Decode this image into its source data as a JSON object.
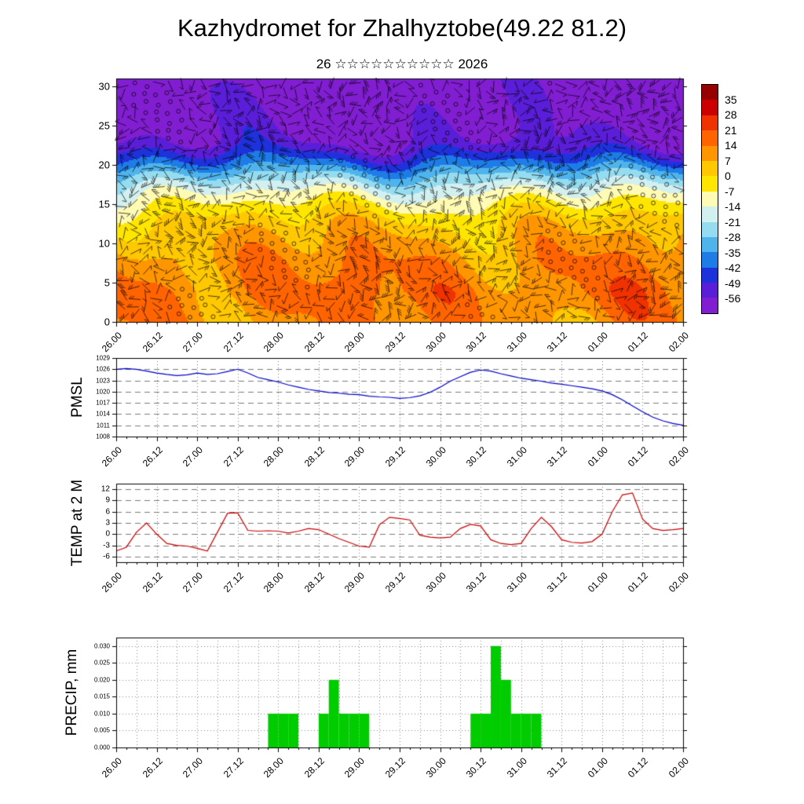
{
  "title": "Kazhydromet for Zhalhyztobe(49.22 81.2)",
  "subtitle": "26 ☆☆☆☆☆☆☆☆☆☆ 2026",
  "x_axis": {
    "tick_labels": [
      "26.00",
      "26.12",
      "27.00",
      "27.12",
      "28.00",
      "28.12",
      "29.00",
      "29.12",
      "30.00",
      "30.12",
      "31.00",
      "31.12",
      "01.00",
      "01.12",
      "02.00"
    ],
    "tick_hours": [
      0,
      12,
      24,
      36,
      48,
      60,
      72,
      84,
      96,
      108,
      120,
      132,
      144,
      156,
      168
    ],
    "minor_step_hours": 3,
    "range_hours": [
      0,
      168
    ]
  },
  "colorbar": {
    "labels": [
      "35",
      "28",
      "21",
      "14",
      "7",
      "0",
      "-7",
      "-14",
      "-21",
      "-28",
      "-35",
      "-42",
      "-49",
      "-56"
    ],
    "colors": [
      "#960000",
      "#cd0000",
      "#f03200",
      "#ff6400",
      "#ff9600",
      "#ffc800",
      "#ffe600",
      "#fffab4",
      "#d2f0f0",
      "#96dcf0",
      "#50b4ec",
      "#1e7ce6",
      "#1e32dc",
      "#5a1ed8",
      "#821ed2"
    ]
  },
  "chart_data": [
    {
      "id": "cross_section",
      "type": "heatmap",
      "title": "model-level temperature cross-section with wind barbs",
      "ylabel": "",
      "yticks": [
        0,
        5,
        10,
        15,
        20,
        25,
        30
      ],
      "ytick_labels": [
        "0",
        "5",
        "10",
        "15",
        "20",
        "25",
        "30"
      ],
      "ylim": [
        0,
        31
      ],
      "levels": [
        35,
        28,
        21,
        14,
        7,
        0,
        -7,
        -14,
        -21,
        -28,
        -35,
        -42,
        -49,
        -56
      ],
      "legend_position": "right-colorbar",
      "overlay": "wind-barbs",
      "profile_points": [
        [
          0,
          12
        ],
        [
          4,
          15
        ],
        [
          8,
          12
        ],
        [
          11,
          7
        ],
        [
          13,
          2
        ],
        [
          15,
          -6
        ],
        [
          17,
          -16
        ],
        [
          19,
          -30
        ],
        [
          20,
          -38
        ],
        [
          21,
          -45
        ],
        [
          22,
          -51
        ],
        [
          23,
          -56
        ],
        [
          24,
          -58
        ],
        [
          26,
          -60
        ],
        [
          31,
          -62
        ]
      ],
      "variation": [
        [
          4.5,
          0.13,
          0.35,
          0
        ],
        [
          3.5,
          0.071,
          0.15,
          2
        ],
        [
          3.0,
          0.23,
          0.05,
          4
        ]
      ]
    },
    {
      "id": "pmsl",
      "type": "line",
      "ylabel": "PMSL",
      "yticks": [
        1008,
        1011,
        1014,
        1017,
        1020,
        1023,
        1026,
        1029
      ],
      "ytick_labels": [
        "1008",
        "1011",
        "1014",
        "1017",
        "1020",
        "1023",
        "1026",
        "1029"
      ],
      "ylim": [
        1008,
        1029
      ],
      "color": "#0000cc",
      "x_step_hours": 3,
      "values": [
        1026,
        1026.2,
        1026,
        1025.5,
        1025,
        1024.6,
        1024.3,
        1024.5,
        1025,
        1024.6,
        1024.8,
        1025.4,
        1026,
        1025,
        1023.8,
        1023.2,
        1022.6,
        1021.8,
        1021.2,
        1020.6,
        1020.2,
        1019.8,
        1019.6,
        1019.3,
        1019.2,
        1018.8,
        1018.6,
        1018.5,
        1018.2,
        1018.4,
        1018.9,
        1019.8,
        1021.2,
        1022.8,
        1024,
        1025.2,
        1025.8,
        1025.5,
        1024.8,
        1024.2,
        1023.6,
        1023.2,
        1022.8,
        1022.3,
        1022,
        1021.6,
        1021.2,
        1020.8,
        1020.2,
        1019.2,
        1017.8,
        1016.2,
        1014.6,
        1013.2,
        1012.2,
        1011.5,
        1011
      ]
    },
    {
      "id": "temp_2m",
      "type": "line",
      "ylabel": "TEMP at 2 M",
      "yticks": [
        -6,
        -3,
        0,
        3,
        6,
        9,
        12
      ],
      "ytick_labels": [
        "-6",
        "-3",
        "0",
        "3",
        "6",
        "9",
        "12"
      ],
      "ylim": [
        -7.5,
        13.5
      ],
      "color": "#cc0000",
      "x_step_hours": 3,
      "values": [
        -4.5,
        -3.5,
        0.5,
        3,
        0,
        -2.5,
        -3,
        -3.2,
        -3.8,
        -4.5,
        0.5,
        5.6,
        5.7,
        1,
        0.8,
        0.9,
        0.8,
        0.3,
        0.8,
        1.5,
        1.2,
        0,
        -1.2,
        -2.2,
        -3.2,
        -3.5,
        2.5,
        4.5,
        4.2,
        3.8,
        -0.3,
        -0.8,
        -1,
        -0.8,
        1.5,
        2.6,
        2.2,
        -1.5,
        -2.5,
        -2.8,
        -2.5,
        1.5,
        4.5,
        2,
        -1.5,
        -2.2,
        -2.4,
        -2,
        0,
        6,
        10.5,
        11,
        4,
        1.5,
        1,
        1.2,
        1.5
      ]
    },
    {
      "id": "precip",
      "type": "bar",
      "ylabel": "PRECIP, mm",
      "yticks": [
        0,
        0.005,
        0.01,
        0.015,
        0.02,
        0.025,
        0.03
      ],
      "ytick_labels": [
        "0.000",
        "0.005",
        "0.010",
        "0.015",
        "0.020",
        "0.025",
        "0.030"
      ],
      "ylim": [
        0,
        0.0325
      ],
      "color": "#00cc00",
      "bar_width_hours": 3,
      "bars": [
        {
          "t": 45,
          "v": 0.01
        },
        {
          "t": 48,
          "v": 0.01
        },
        {
          "t": 51,
          "v": 0.01
        },
        {
          "t": 60,
          "v": 0.01
        },
        {
          "t": 63,
          "v": 0.02
        },
        {
          "t": 66,
          "v": 0.01
        },
        {
          "t": 69,
          "v": 0.01
        },
        {
          "t": 72,
          "v": 0.01
        },
        {
          "t": 105,
          "v": 0.01
        },
        {
          "t": 108,
          "v": 0.01
        },
        {
          "t": 111,
          "v": 0.03
        },
        {
          "t": 114,
          "v": 0.02
        },
        {
          "t": 117,
          "v": 0.01
        },
        {
          "t": 120,
          "v": 0.01
        },
        {
          "t": 123,
          "v": 0.01
        }
      ]
    }
  ]
}
